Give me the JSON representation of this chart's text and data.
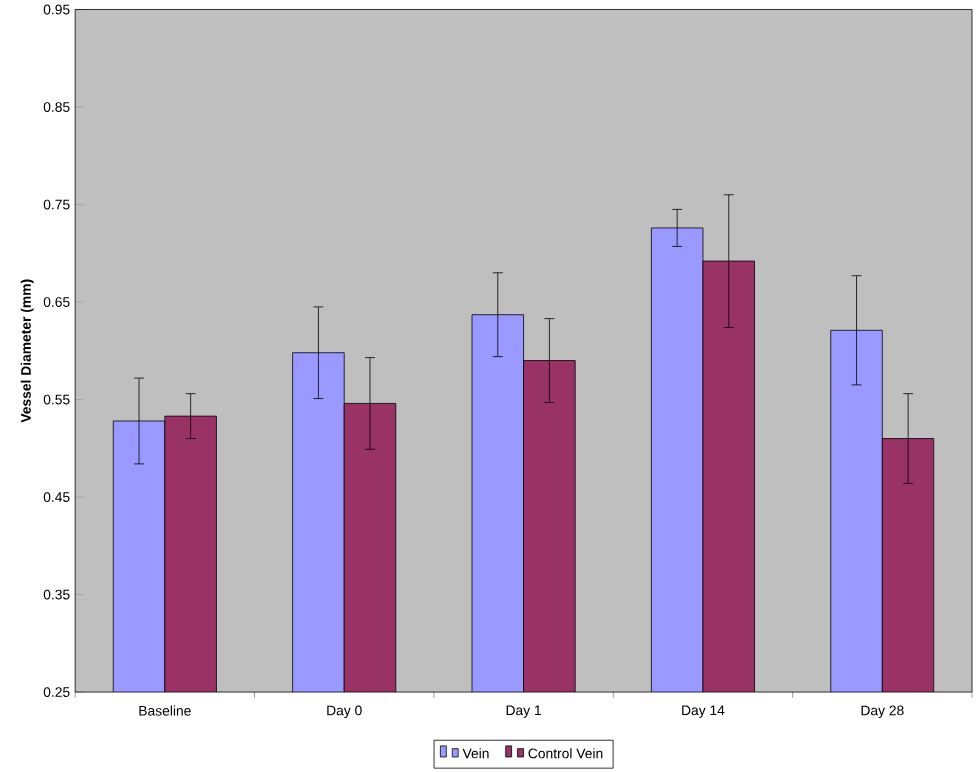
{
  "chart_data": {
    "type": "bar",
    "ylabel": "Vessel Diameter (mm)",
    "categories": [
      "Baseline",
      "Day 0",
      "Day 1",
      "Day 14",
      "Day 28"
    ],
    "series": [
      {
        "name": "Vein",
        "color": "#9999ff",
        "values": [
          0.528,
          0.598,
          0.637,
          0.726,
          0.621
        ],
        "errors": [
          0.044,
          0.047,
          0.043,
          0.019,
          0.056
        ]
      },
      {
        "name": "Control Vein",
        "color": "#993366",
        "values": [
          0.533,
          0.546,
          0.59,
          0.692,
          0.51
        ],
        "errors": [
          0.023,
          0.047,
          0.043,
          0.068,
          0.046
        ]
      }
    ],
    "ylim": [
      0.25,
      0.95
    ],
    "yticks": [
      0.25,
      0.35,
      0.45,
      0.55,
      0.65,
      0.75,
      0.85,
      0.95
    ],
    "legend": "bottom"
  }
}
